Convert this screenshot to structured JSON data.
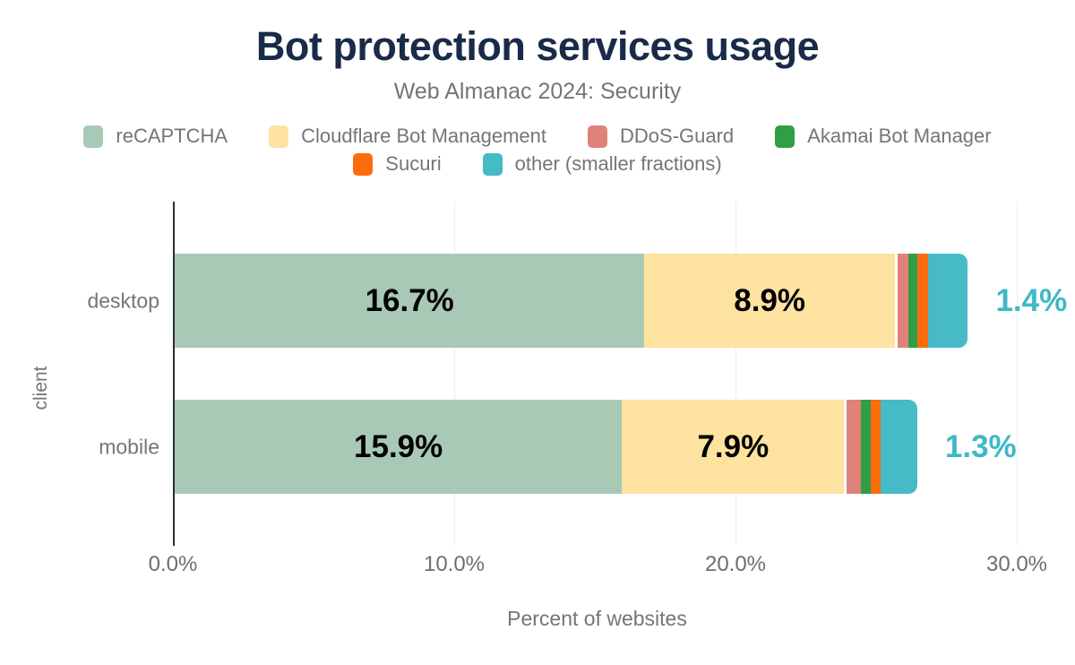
{
  "title": "Bot protection services usage",
  "subtitle": "Web Almanac 2024: Security",
  "colors": {
    "title_text": "#1a2b49",
    "muted_text": "#757575",
    "tick_text": "#6e6e6e",
    "inside_label": "#000000",
    "outside_label": "#3eb9c6",
    "grid": "#ececec",
    "axis": "#2e2e2e",
    "background": "#ffffff"
  },
  "chart_data": {
    "type": "bar",
    "orientation": "horizontal",
    "stacked": true,
    "title": "Bot protection services usage",
    "subtitle": "Web Almanac 2024: Security",
    "xlabel": "Percent of websites",
    "ylabel": "client",
    "categories": [
      "desktop",
      "mobile"
    ],
    "xlim": [
      0,
      30
    ],
    "grid": "vertical",
    "legend_position": "top",
    "x_ticks": [
      {
        "value": 0,
        "label": "0.0%"
      },
      {
        "value": 10,
        "label": "10.0%"
      },
      {
        "value": 20,
        "label": "20.0%"
      },
      {
        "value": 30,
        "label": "30.0%"
      }
    ],
    "series": [
      {
        "name": "reCAPTCHA",
        "color": "#a8c9b5",
        "values": [
          16.7,
          15.9
        ],
        "labels": [
          "16.7%",
          "15.9%"
        ],
        "label_outside": false
      },
      {
        "name": "Cloudflare Bot Management",
        "color": "#fde2a0",
        "values": [
          8.9,
          7.9
        ],
        "labels": [
          "8.9%",
          "7.9%"
        ],
        "label_outside": false
      },
      {
        "name": "DDoS-Guard",
        "color": "#e1827a",
        "values": [
          0.4,
          0.5
        ],
        "labels": [
          "",
          ""
        ],
        "label_outside": false
      },
      {
        "name": "Akamai Bot Manager",
        "color": "#2f9e44",
        "values": [
          0.3,
          0.35
        ],
        "labels": [
          "",
          ""
        ],
        "label_outside": false
      },
      {
        "name": "Sucuri",
        "color": "#fa6c0d",
        "values": [
          0.4,
          0.35
        ],
        "labels": [
          "",
          ""
        ],
        "label_outside": false
      },
      {
        "name": "other (smaller fractions)",
        "color": "#46bac7",
        "values": [
          1.4,
          1.3
        ],
        "labels": [
          "1.4%",
          "1.3%"
        ],
        "label_outside": true
      }
    ],
    "legend_rows": [
      [
        0,
        1,
        2,
        3
      ],
      [
        4,
        5
      ]
    ]
  }
}
